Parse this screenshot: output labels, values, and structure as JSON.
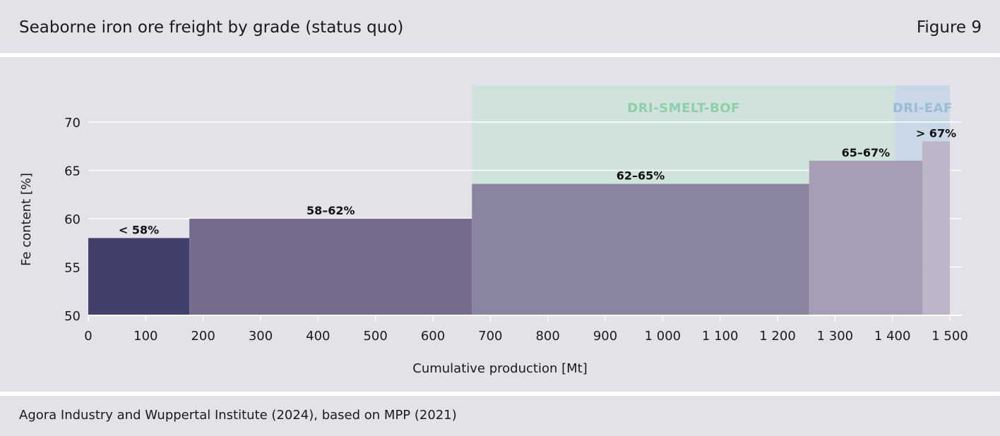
{
  "header": {
    "title": "Seaborne iron ore freight by grade (status quo)",
    "figure_label": "Figure 9"
  },
  "footer": {
    "source": "Agora Industry and Wuppertal Institute (2024), based on MPP (2021)"
  },
  "colors": {
    "panel_bg": "#e2e2e8",
    "grade_below_58": "#413f6c",
    "grade_58_62": "#756c8d",
    "grade_62_65": "#8b849f",
    "grade_65_67": "#a59eb5",
    "grade_above_67": "#bcb6c8",
    "dri_smelt_bof": "#cfe3dc",
    "dri_eaf": "#c8d8e6",
    "dri_smelt_bof_text": "#8dcfa8",
    "dri_eaf_text": "#9bbcd6"
  },
  "chart_data": {
    "type": "bar",
    "xlabel": "Cumulative production [Mt]",
    "ylabel": "Fe content [%]",
    "xlim": [
      0,
      1500
    ],
    "ylim": [
      50,
      70
    ],
    "x_ticks": [
      0,
      100,
      200,
      300,
      400,
      500,
      600,
      700,
      800,
      900,
      1000,
      1100,
      1200,
      1300,
      1400,
      1500
    ],
    "x_tick_labels": [
      "0",
      "100",
      "200",
      "300",
      "400",
      "500",
      "600",
      "700",
      "800",
      "900",
      "1 000",
      "1 100",
      "1 200",
      "1 300",
      "1 400",
      "1 500"
    ],
    "y_ticks": [
      50,
      55,
      60,
      65,
      70
    ],
    "y_tick_labels": [
      "50",
      "55",
      "60",
      "65",
      "70"
    ],
    "grid": true,
    "bars": [
      {
        "label": "< 58%",
        "x_start": 0,
        "x_end": 176,
        "value": 58,
        "color": "#413f6c"
      },
      {
        "label": "58–62%",
        "x_start": 176,
        "x_end": 668,
        "value": 60,
        "color": "#756c8d"
      },
      {
        "label": "62–65%",
        "x_start": 668,
        "x_end": 1255,
        "value": 63.6,
        "color": "#8b849f"
      },
      {
        "label": "65–67%",
        "x_start": 1255,
        "x_end": 1452,
        "value": 66,
        "color": "#a59eb5"
      },
      {
        "label": "> 67%",
        "x_start": 1452,
        "x_end": 1500,
        "value": 68,
        "color": "#bcb6c8"
      }
    ],
    "regions": [
      {
        "label": "DRI-SMELT-BOF",
        "x_start": 668,
        "x_end": 1405,
        "color": "#cfe3dc",
        "text_color": "#8dcfa8"
      },
      {
        "label": "DRI-EAF",
        "x_start": 1405,
        "x_end": 1500,
        "color": "#c8d8e6",
        "text_color": "#9bbcd6"
      }
    ]
  }
}
